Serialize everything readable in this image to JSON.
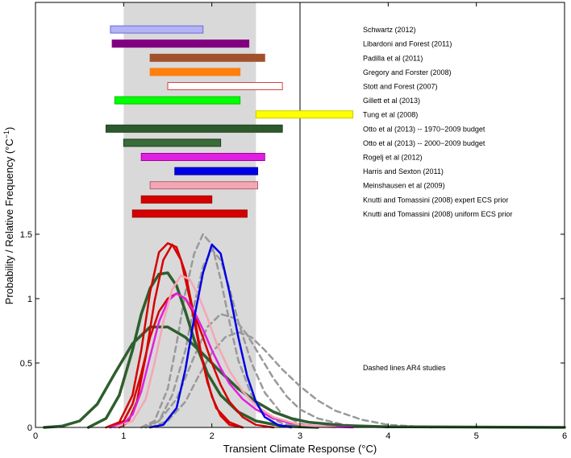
{
  "chart_data": {
    "type": "line",
    "xlabel": "Transient Climate Response (°C)",
    "ylabel": "Probability / Relative Frequency (°C",
    "ylabel_superscript": "−1",
    "ylabel_close": ")",
    "xlim": [
      0,
      6
    ],
    "ylim": [
      0,
      3.3
    ],
    "x_ticks": [
      0,
      1,
      2,
      3,
      4,
      5,
      6
    ],
    "x_tick_labels": [
      "0",
      "1",
      "2",
      "3",
      "4",
      "5",
      "6"
    ],
    "y_ticks": [
      0,
      0.5,
      1,
      1.5
    ],
    "y_tick_labels": [
      "0",
      "0.5",
      "1",
      "1.5"
    ],
    "grid": false,
    "shaded_band": {
      "x0": 1.0,
      "x1": 2.5,
      "color": "#d9d9d9"
    },
    "reference_line_x": 3.0,
    "annotation": "Dashed lines AR4 studies",
    "ranges": [
      {
        "label": "Schwartz (2012)",
        "x0": 0.85,
        "x1": 1.9,
        "y": 3.09,
        "fill": "#b3b3f5",
        "stroke": "#6a6adc"
      },
      {
        "label": "Libardoni and Forest (2011)",
        "x0": 0.87,
        "x1": 2.42,
        "y": 2.98,
        "fill": "#800080",
        "stroke": "#800080"
      },
      {
        "label": "Padilla et al (2011)",
        "x0": 1.3,
        "x1": 2.6,
        "y": 2.87,
        "fill": "#a0522d",
        "stroke": "#a0522d"
      },
      {
        "label": "Gregory and Forster (2008)",
        "x0": 1.3,
        "x1": 2.32,
        "y": 2.76,
        "fill": "#ff7f0e",
        "stroke": "#ff7f0e"
      },
      {
        "label": "Stott and Forest (2007)",
        "x0": 1.5,
        "x1": 2.8,
        "y": 2.65,
        "fill": "#ffffff",
        "stroke": "#d94040"
      },
      {
        "label": "Gillett et al (2013)",
        "x0": 0.9,
        "x1": 2.32,
        "y": 2.54,
        "fill": "#00ff00",
        "stroke": "#00c000"
      },
      {
        "label": "Tung et al (2008)",
        "x0": 2.5,
        "x1": 3.6,
        "y": 2.43,
        "fill": "#ffff00",
        "stroke": "#c8c800"
      },
      {
        "label": "Otto et al (2013) -- 1970−2009 budget",
        "x0": 0.8,
        "x1": 2.8,
        "y": 2.32,
        "fill": "#2d5a2d",
        "stroke": "#1e3f1e"
      },
      {
        "label": "Otto et al (2013) -- 2000−2009 budget",
        "x0": 1.0,
        "x1": 2.1,
        "y": 2.21,
        "fill": "#3a6b3a",
        "stroke": "#1e3f1e"
      },
      {
        "label": "Rogelj et al (2012)",
        "x0": 1.2,
        "x1": 2.6,
        "y": 2.1,
        "fill": "#e020e0",
        "stroke": "#a000a0"
      },
      {
        "label": "Harris and Sexton (2011)",
        "x0": 1.58,
        "x1": 2.52,
        "y": 1.99,
        "fill": "#0000e6",
        "stroke": "#0000a0"
      },
      {
        "label": "Meinshausen et al (2009)",
        "x0": 1.3,
        "x1": 2.52,
        "y": 1.88,
        "fill": "#f4a6b4",
        "stroke": "#b06070"
      },
      {
        "label": "Knutti and Tomassini (2008) expert ECS prior",
        "x0": 1.2,
        "x1": 2.0,
        "y": 1.77,
        "fill": "#d40000",
        "stroke": "#a00000"
      },
      {
        "label": "Knutti and Tomassini (2008) uniform ECS prior",
        "x0": 1.1,
        "x1": 2.4,
        "y": 1.66,
        "fill": "#d40000",
        "stroke": "#a00000"
      }
    ],
    "series": [
      {
        "color": "#2e5e2e",
        "width": 3.5,
        "dashed": false,
        "values": [
          [
            0.1,
            0.0
          ],
          [
            0.3,
            0.01
          ],
          [
            0.5,
            0.05
          ],
          [
            0.7,
            0.18
          ],
          [
            0.9,
            0.42
          ],
          [
            1.1,
            0.65
          ],
          [
            1.3,
            0.78
          ],
          [
            1.5,
            0.78
          ],
          [
            1.7,
            0.7
          ],
          [
            1.9,
            0.57
          ],
          [
            2.1,
            0.43
          ],
          [
            2.3,
            0.3
          ],
          [
            2.5,
            0.2
          ],
          [
            2.7,
            0.12
          ],
          [
            2.9,
            0.07
          ],
          [
            3.1,
            0.04
          ],
          [
            3.5,
            0.015
          ],
          [
            4.0,
            0.005
          ],
          [
            6.0,
            0.0
          ]
        ]
      },
      {
        "color": "#2e5e2e",
        "width": 3.5,
        "dashed": false,
        "values": [
          [
            0.6,
            0.0
          ],
          [
            0.8,
            0.07
          ],
          [
            0.95,
            0.25
          ],
          [
            1.1,
            0.6
          ],
          [
            1.2,
            0.88
          ],
          [
            1.3,
            1.08
          ],
          [
            1.4,
            1.19
          ],
          [
            1.5,
            1.2
          ],
          [
            1.6,
            1.1
          ],
          [
            1.7,
            0.9
          ],
          [
            1.8,
            0.68
          ],
          [
            1.95,
            0.42
          ],
          [
            2.1,
            0.25
          ],
          [
            2.3,
            0.12
          ],
          [
            2.5,
            0.05
          ],
          [
            2.8,
            0.01
          ],
          [
            3.2,
            0.0
          ]
        ]
      },
      {
        "color": "#d60000",
        "width": 2.5,
        "dashed": false,
        "values": [
          [
            0.8,
            0.0
          ],
          [
            0.95,
            0.04
          ],
          [
            1.1,
            0.25
          ],
          [
            1.2,
            0.6
          ],
          [
            1.3,
            1.05
          ],
          [
            1.4,
            1.36
          ],
          [
            1.5,
            1.43
          ],
          [
            1.6,
            1.4
          ],
          [
            1.7,
            1.2
          ],
          [
            1.8,
            0.86
          ],
          [
            1.9,
            0.5
          ],
          [
            2.0,
            0.24
          ],
          [
            2.1,
            0.09
          ],
          [
            2.2,
            0.02
          ],
          [
            2.35,
            0.0
          ]
        ]
      },
      {
        "color": "#d60000",
        "width": 2.5,
        "dashed": false,
        "values": [
          [
            0.85,
            0.0
          ],
          [
            1.0,
            0.05
          ],
          [
            1.1,
            0.18
          ],
          [
            1.2,
            0.42
          ],
          [
            1.3,
            0.7
          ],
          [
            1.4,
            0.9
          ],
          [
            1.5,
            1.0
          ],
          [
            1.6,
            1.04
          ],
          [
            1.7,
            1.0
          ],
          [
            1.8,
            0.88
          ],
          [
            1.9,
            0.7
          ],
          [
            2.0,
            0.5
          ],
          [
            2.1,
            0.33
          ],
          [
            2.2,
            0.2
          ],
          [
            2.35,
            0.08
          ],
          [
            2.5,
            0.02
          ],
          [
            2.7,
            0.0
          ]
        ]
      },
      {
        "color": "#d60000",
        "width": 2.5,
        "dashed": false,
        "values": [
          [
            0.95,
            0.0
          ],
          [
            1.05,
            0.04
          ],
          [
            1.15,
            0.2
          ],
          [
            1.25,
            0.55
          ],
          [
            1.35,
            0.98
          ],
          [
            1.45,
            1.3
          ],
          [
            1.55,
            1.42
          ],
          [
            1.65,
            1.3
          ],
          [
            1.75,
            1.0
          ],
          [
            1.85,
            0.65
          ],
          [
            1.95,
            0.35
          ],
          [
            2.05,
            0.15
          ],
          [
            2.2,
            0.04
          ],
          [
            2.35,
            0.0
          ]
        ]
      },
      {
        "color": "#e020e0",
        "width": 2.5,
        "dashed": false,
        "values": [
          [
            0.85,
            0.0
          ],
          [
            1.0,
            0.03
          ],
          [
            1.1,
            0.1
          ],
          [
            1.2,
            0.28
          ],
          [
            1.3,
            0.55
          ],
          [
            1.4,
            0.82
          ],
          [
            1.5,
            0.98
          ],
          [
            1.6,
            1.04
          ],
          [
            1.7,
            1.0
          ],
          [
            1.8,
            0.9
          ],
          [
            1.9,
            0.76
          ],
          [
            2.0,
            0.6
          ],
          [
            2.1,
            0.46
          ],
          [
            2.2,
            0.34
          ],
          [
            2.35,
            0.22
          ],
          [
            2.5,
            0.14
          ],
          [
            2.7,
            0.07
          ],
          [
            2.9,
            0.03
          ],
          [
            3.2,
            0.01
          ],
          [
            3.6,
            0.0
          ]
        ]
      },
      {
        "color": "#f4a6b4",
        "width": 2.5,
        "dashed": false,
        "values": [
          [
            0.9,
            0.0
          ],
          [
            1.1,
            0.05
          ],
          [
            1.25,
            0.22
          ],
          [
            1.35,
            0.5
          ],
          [
            1.45,
            0.82
          ],
          [
            1.55,
            1.07
          ],
          [
            1.65,
            1.18
          ],
          [
            1.75,
            1.15
          ],
          [
            1.85,
            1.02
          ],
          [
            1.95,
            0.85
          ],
          [
            2.05,
            0.66
          ],
          [
            2.2,
            0.44
          ],
          [
            2.35,
            0.28
          ],
          [
            2.5,
            0.17
          ],
          [
            2.7,
            0.08
          ],
          [
            3.0,
            0.02
          ],
          [
            3.4,
            0.0
          ]
        ]
      },
      {
        "color": "#0000e6",
        "width": 2.5,
        "dashed": false,
        "values": [
          [
            1.3,
            0.0
          ],
          [
            1.45,
            0.02
          ],
          [
            1.6,
            0.15
          ],
          [
            1.7,
            0.45
          ],
          [
            1.8,
            0.85
          ],
          [
            1.9,
            1.2
          ],
          [
            2.0,
            1.42
          ],
          [
            2.1,
            1.35
          ],
          [
            2.2,
            1.05
          ],
          [
            2.3,
            0.7
          ],
          [
            2.4,
            0.4
          ],
          [
            2.5,
            0.2
          ],
          [
            2.6,
            0.08
          ],
          [
            2.75,
            0.02
          ],
          [
            2.9,
            0.0
          ]
        ]
      },
      {
        "color": "#999999",
        "width": 2.5,
        "dashed": true,
        "values": [
          [
            1.2,
            0.0
          ],
          [
            1.35,
            0.05
          ],
          [
            1.5,
            0.3
          ],
          [
            1.6,
            0.65
          ],
          [
            1.7,
            1.05
          ],
          [
            1.8,
            1.35
          ],
          [
            1.9,
            1.5
          ],
          [
            2.0,
            1.42
          ],
          [
            2.1,
            1.15
          ],
          [
            2.2,
            0.82
          ],
          [
            2.3,
            0.52
          ],
          [
            2.45,
            0.25
          ],
          [
            2.6,
            0.1
          ],
          [
            2.8,
            0.03
          ],
          [
            3.0,
            0.0
          ]
        ]
      },
      {
        "color": "#999999",
        "width": 2.5,
        "dashed": true,
        "values": [
          [
            1.25,
            0.0
          ],
          [
            1.4,
            0.05
          ],
          [
            1.55,
            0.25
          ],
          [
            1.7,
            0.6
          ],
          [
            1.8,
            0.95
          ],
          [
            1.9,
            1.25
          ],
          [
            2.0,
            1.38
          ],
          [
            2.1,
            1.3
          ],
          [
            2.2,
            1.08
          ],
          [
            2.3,
            0.82
          ],
          [
            2.45,
            0.5
          ],
          [
            2.6,
            0.27
          ],
          [
            2.8,
            0.1
          ],
          [
            3.0,
            0.03
          ],
          [
            3.2,
            0.0
          ]
        ]
      },
      {
        "color": "#999999",
        "width": 2.5,
        "dashed": true,
        "values": [
          [
            1.2,
            0.0
          ],
          [
            1.4,
            0.05
          ],
          [
            1.6,
            0.22
          ],
          [
            1.8,
            0.55
          ],
          [
            1.95,
            0.78
          ],
          [
            2.1,
            0.88
          ],
          [
            2.25,
            0.85
          ],
          [
            2.4,
            0.72
          ],
          [
            2.55,
            0.55
          ],
          [
            2.7,
            0.38
          ],
          [
            2.85,
            0.24
          ],
          [
            3.0,
            0.14
          ],
          [
            3.2,
            0.07
          ],
          [
            3.5,
            0.02
          ],
          [
            4.0,
            0.0
          ]
        ]
      },
      {
        "color": "#999999",
        "width": 2.5,
        "dashed": true,
        "values": [
          [
            1.3,
            0.0
          ],
          [
            1.5,
            0.05
          ],
          [
            1.7,
            0.2
          ],
          [
            1.85,
            0.4
          ],
          [
            2.0,
            0.58
          ],
          [
            2.15,
            0.7
          ],
          [
            2.3,
            0.74
          ],
          [
            2.45,
            0.7
          ],
          [
            2.6,
            0.6
          ],
          [
            2.8,
            0.45
          ],
          [
            3.0,
            0.32
          ],
          [
            3.2,
            0.21
          ],
          [
            3.4,
            0.13
          ],
          [
            3.7,
            0.06
          ],
          [
            4.0,
            0.02
          ],
          [
            4.5,
            0.0
          ]
        ]
      }
    ]
  }
}
